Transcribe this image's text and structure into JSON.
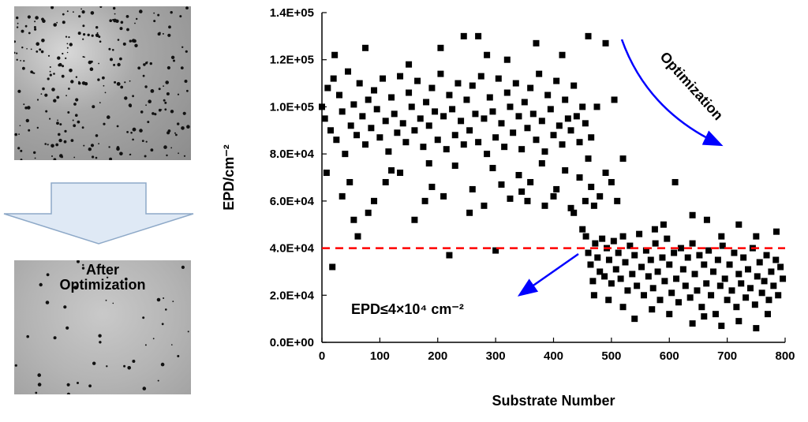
{
  "micrographs": {
    "before_alt": "",
    "after_label_line1": "After",
    "after_label_line2": "Optimization"
  },
  "chart_data": {
    "type": "scatter",
    "title": "",
    "xlabel": "Substrate Number",
    "ylabel": "EPD/cm⁻²",
    "xlim": [
      0,
      800
    ],
    "ylim": [
      0,
      140000
    ],
    "x_ticks": [
      0,
      100,
      200,
      300,
      400,
      500,
      600,
      700,
      800
    ],
    "y_ticks": [
      "0.0E+00",
      "2.0E+04",
      "4.0E+04",
      "6.0E+04",
      "8.0E+04",
      "1.0E+05",
      "1.2E+05",
      "1.4E+05"
    ],
    "threshold": 40000,
    "marker": "square",
    "marker_color": "#000000",
    "threshold_color": "#ff0000",
    "arrow_color": "#0000ff",
    "annotations": {
      "optimization": "Optimization",
      "epd_label": "EPD≤4×10⁴ cm⁻²"
    },
    "points": [
      [
        0,
        100000
      ],
      [
        5,
        95000
      ],
      [
        10,
        108000
      ],
      [
        15,
        90000
      ],
      [
        20,
        112000
      ],
      [
        25,
        86000
      ],
      [
        30,
        105000
      ],
      [
        35,
        98000
      ],
      [
        40,
        80000
      ],
      [
        45,
        115000
      ],
      [
        50,
        92000
      ],
      [
        55,
        101000
      ],
      [
        60,
        88000
      ],
      [
        65,
        110000
      ],
      [
        70,
        96000
      ],
      [
        75,
        84000
      ],
      [
        80,
        103000
      ],
      [
        85,
        91000
      ],
      [
        90,
        107000
      ],
      [
        95,
        99000
      ],
      [
        100,
        87000
      ],
      [
        105,
        112000
      ],
      [
        110,
        94000
      ],
      [
        115,
        81000
      ],
      [
        120,
        104000
      ],
      [
        125,
        97000
      ],
      [
        130,
        89000
      ],
      [
        135,
        113000
      ],
      [
        140,
        93000
      ],
      [
        145,
        85000
      ],
      [
        150,
        106000
      ],
      [
        155,
        100000
      ],
      [
        160,
        90000
      ],
      [
        165,
        111000
      ],
      [
        170,
        95000
      ],
      [
        175,
        83000
      ],
      [
        180,
        102000
      ],
      [
        185,
        92000
      ],
      [
        190,
        108000
      ],
      [
        195,
        98000
      ],
      [
        200,
        86000
      ],
      [
        205,
        114000
      ],
      [
        210,
        96000
      ],
      [
        215,
        82000
      ],
      [
        220,
        105000
      ],
      [
        225,
        99000
      ],
      [
        230,
        88000
      ],
      [
        235,
        110000
      ],
      [
        240,
        94000
      ],
      [
        245,
        84000
      ],
      [
        250,
        103000
      ],
      [
        255,
        90000
      ],
      [
        260,
        109000
      ],
      [
        265,
        97000
      ],
      [
        270,
        85000
      ],
      [
        275,
        113000
      ],
      [
        280,
        95000
      ],
      [
        285,
        80000
      ],
      [
        290,
        104000
      ],
      [
        295,
        98000
      ],
      [
        300,
        87000
      ],
      [
        305,
        112000
      ],
      [
        310,
        93000
      ],
      [
        315,
        83000
      ],
      [
        320,
        106000
      ],
      [
        325,
        100000
      ],
      [
        330,
        89000
      ],
      [
        335,
        110000
      ],
      [
        340,
        96000
      ],
      [
        345,
        82000
      ],
      [
        350,
        102000
      ],
      [
        355,
        91000
      ],
      [
        360,
        108000
      ],
      [
        365,
        97000
      ],
      [
        370,
        86000
      ],
      [
        375,
        114000
      ],
      [
        380,
        94000
      ],
      [
        385,
        81000
      ],
      [
        390,
        105000
      ],
      [
        395,
        99000
      ],
      [
        400,
        88000
      ],
      [
        405,
        111000
      ],
      [
        410,
        92000
      ],
      [
        415,
        84000
      ],
      [
        420,
        103000
      ],
      [
        425,
        95000
      ],
      [
        430,
        90000
      ],
      [
        435,
        109000
      ],
      [
        440,
        96000
      ],
      [
        445,
        85000
      ],
      [
        450,
        100000
      ],
      [
        455,
        93000
      ],
      [
        460,
        78000
      ],
      [
        465,
        87000
      ],
      [
        8,
        72000
      ],
      [
        22,
        122000
      ],
      [
        48,
        68000
      ],
      [
        62,
        45000
      ],
      [
        75,
        125000
      ],
      [
        90,
        60000
      ],
      [
        120,
        73000
      ],
      [
        150,
        118000
      ],
      [
        178,
        60000
      ],
      [
        190,
        66000
      ],
      [
        205,
        125000
      ],
      [
        220,
        37000
      ],
      [
        245,
        130000
      ],
      [
        255,
        55000
      ],
      [
        270,
        130000
      ],
      [
        285,
        122000
      ],
      [
        300,
        39000
      ],
      [
        310,
        67000
      ],
      [
        320,
        120000
      ],
      [
        340,
        71000
      ],
      [
        355,
        60000
      ],
      [
        370,
        127000
      ],
      [
        385,
        58000
      ],
      [
        405,
        65000
      ],
      [
        415,
        122000
      ],
      [
        430,
        57000
      ],
      [
        445,
        70000
      ],
      [
        460,
        130000
      ],
      [
        475,
        100000
      ],
      [
        490,
        127000
      ],
      [
        505,
        103000
      ],
      [
        18,
        32000
      ],
      [
        35,
        62000
      ],
      [
        55,
        52000
      ],
      [
        80,
        55000
      ],
      [
        110,
        68000
      ],
      [
        135,
        72000
      ],
      [
        160,
        52000
      ],
      [
        185,
        76000
      ],
      [
        210,
        62000
      ],
      [
        230,
        75000
      ],
      [
        260,
        65000
      ],
      [
        280,
        58000
      ],
      [
        295,
        74000
      ],
      [
        325,
        61000
      ],
      [
        345,
        64000
      ],
      [
        360,
        68000
      ],
      [
        380,
        76000
      ],
      [
        400,
        62000
      ],
      [
        420,
        73000
      ],
      [
        435,
        55000
      ],
      [
        450,
        48000
      ],
      [
        455,
        60000
      ],
      [
        465,
        66000
      ],
      [
        470,
        58000
      ],
      [
        480,
        62000
      ],
      [
        490,
        72000
      ],
      [
        500,
        68000
      ],
      [
        510,
        60000
      ],
      [
        520,
        78000
      ],
      [
        456,
        45000
      ],
      [
        460,
        38000
      ],
      [
        464,
        33000
      ],
      [
        468,
        26000
      ],
      [
        472,
        42000
      ],
      [
        476,
        36000
      ],
      [
        480,
        30000
      ],
      [
        484,
        44000
      ],
      [
        488,
        28000
      ],
      [
        492,
        40000
      ],
      [
        496,
        35000
      ],
      [
        500,
        25000
      ],
      [
        504,
        43000
      ],
      [
        508,
        31000
      ],
      [
        512,
        38000
      ],
      [
        516,
        27000
      ],
      [
        520,
        45000
      ],
      [
        524,
        34000
      ],
      [
        528,
        22000
      ],
      [
        532,
        41000
      ],
      [
        536,
        29000
      ],
      [
        540,
        37000
      ],
      [
        544,
        24000
      ],
      [
        548,
        46000
      ],
      [
        552,
        32000
      ],
      [
        556,
        20000
      ],
      [
        560,
        39000
      ],
      [
        564,
        28000
      ],
      [
        568,
        35000
      ],
      [
        572,
        23000
      ],
      [
        576,
        42000
      ],
      [
        580,
        30000
      ],
      [
        584,
        18000
      ],
      [
        588,
        36000
      ],
      [
        592,
        26000
      ],
      [
        596,
        44000
      ],
      [
        600,
        33000
      ],
      [
        604,
        21000
      ],
      [
        608,
        38000
      ],
      [
        612,
        27000
      ],
      [
        616,
        17000
      ],
      [
        620,
        40000
      ],
      [
        624,
        31000
      ],
      [
        628,
        24000
      ],
      [
        632,
        36000
      ],
      [
        636,
        19000
      ],
      [
        640,
        42000
      ],
      [
        644,
        29000
      ],
      [
        648,
        22000
      ],
      [
        652,
        37000
      ],
      [
        656,
        15000
      ],
      [
        660,
        33000
      ],
      [
        664,
        25000
      ],
      [
        668,
        39000
      ],
      [
        672,
        20000
      ],
      [
        676,
        30000
      ],
      [
        680,
        12000
      ],
      [
        684,
        35000
      ],
      [
        688,
        24000
      ],
      [
        692,
        41000
      ],
      [
        696,
        27000
      ],
      [
        700,
        18000
      ],
      [
        704,
        33000
      ],
      [
        708,
        22000
      ],
      [
        712,
        38000
      ],
      [
        716,
        15000
      ],
      [
        720,
        29000
      ],
      [
        724,
        25000
      ],
      [
        728,
        36000
      ],
      [
        732,
        19000
      ],
      [
        736,
        31000
      ],
      [
        740,
        23000
      ],
      [
        744,
        40000
      ],
      [
        748,
        16000
      ],
      [
        752,
        28000
      ],
      [
        756,
        34000
      ],
      [
        760,
        21000
      ],
      [
        764,
        26000
      ],
      [
        768,
        37000
      ],
      [
        772,
        18000
      ],
      [
        776,
        30000
      ],
      [
        780,
        24000
      ],
      [
        784,
        35000
      ],
      [
        788,
        20000
      ],
      [
        792,
        32000
      ],
      [
        796,
        27000
      ],
      [
        470,
        20000
      ],
      [
        495,
        18000
      ],
      [
        520,
        15000
      ],
      [
        540,
        10000
      ],
      [
        570,
        14000
      ],
      [
        600,
        12000
      ],
      [
        640,
        8000
      ],
      [
        660,
        11000
      ],
      [
        690,
        7000
      ],
      [
        720,
        9000
      ],
      [
        750,
        6000
      ],
      [
        770,
        12000
      ],
      [
        575,
        48000
      ],
      [
        590,
        50000
      ],
      [
        610,
        68000
      ],
      [
        640,
        54000
      ],
      [
        665,
        52000
      ],
      [
        690,
        45000
      ],
      [
        720,
        50000
      ],
      [
        750,
        45000
      ],
      [
        785,
        47000
      ]
    ]
  }
}
